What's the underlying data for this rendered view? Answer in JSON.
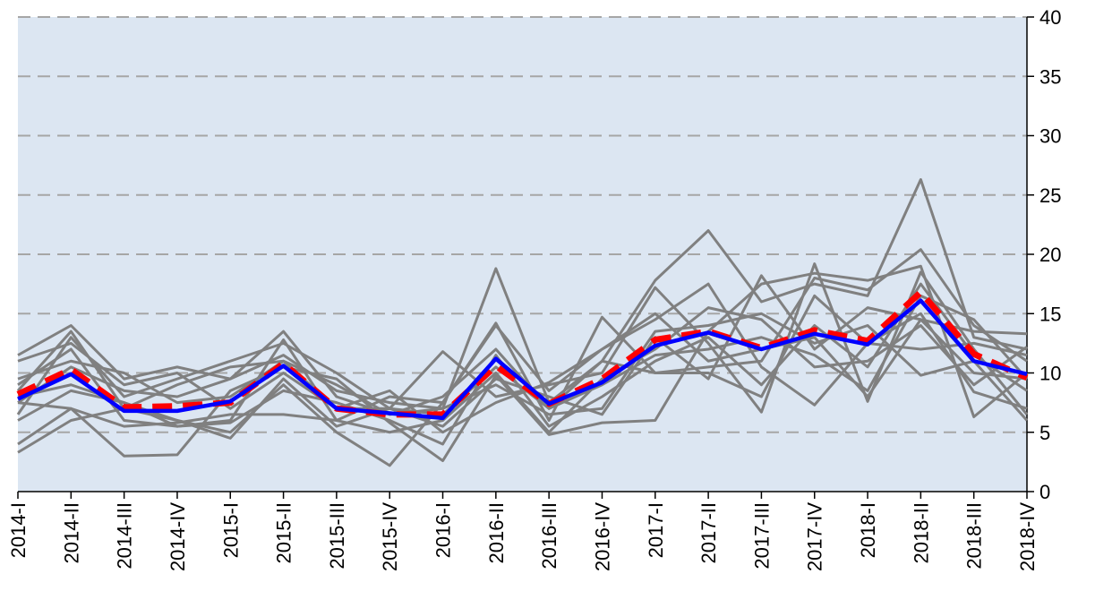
{
  "chart_data": {
    "type": "line",
    "categories": [
      "2014-I",
      "2014-II",
      "2014-III",
      "2014-IV",
      "2015-I",
      "2015-II",
      "2015-III",
      "2015-IV",
      "2016-I",
      "2016-II",
      "2016-III",
      "2016-IV",
      "2017-I",
      "2017-II",
      "2017-III",
      "2017-IV",
      "2018-I",
      "2018-II",
      "2018-III",
      "2018-IV"
    ],
    "ylim": [
      0,
      40
    ],
    "yticks": [
      0,
      5,
      10,
      15,
      20,
      25,
      30,
      35,
      40
    ],
    "grid": true,
    "y_axis_side": "right",
    "plot_background": "#dce6f2",
    "series": [
      {
        "color": "#808080",
        "values": [
          11.5,
          14.0,
          9.5,
          10.5,
          9.5,
          13.5,
          8.0,
          6.5,
          7.0,
          18.8,
          7.5,
          11.0,
          17.8,
          22.0,
          16.0,
          17.5,
          16.5,
          26.3,
          13.0,
          12.0
        ]
      },
      {
        "color": "#808080",
        "values": [
          3.3,
          6.0,
          7.0,
          6.0,
          5.0,
          9.0,
          5.0,
          2.2,
          7.5,
          14.2,
          6.0,
          14.7,
          10.0,
          10.5,
          11.0,
          18.0,
          17.0,
          20.4,
          14.0,
          11.0
        ]
      },
      {
        "color": "#808080",
        "values": [
          4.0,
          7.0,
          3.0,
          3.1,
          8.5,
          10.5,
          9.5,
          5.8,
          2.6,
          9.8,
          4.8,
          5.8,
          6.0,
          13.5,
          17.5,
          18.4,
          17.8,
          19.0,
          6.3,
          10.0
        ]
      },
      {
        "color": "#808080",
        "values": [
          6.5,
          13.0,
          8.0,
          9.5,
          11.0,
          12.5,
          10.0,
          7.0,
          11.8,
          8.0,
          9.0,
          10.0,
          17.2,
          12.5,
          6.7,
          19.2,
          7.6,
          18.5,
          12.0,
          6.5
        ]
      },
      {
        "color": "#808080",
        "values": [
          9.0,
          12.0,
          6.0,
          5.5,
          6.0,
          12.8,
          6.0,
          8.0,
          7.5,
          14.0,
          8.5,
          12.0,
          14.5,
          17.5,
          10.5,
          7.3,
          12.5,
          15.0,
          8.4,
          7.0
        ]
      },
      {
        "color": "#808080",
        "values": [
          8.0,
          9.0,
          7.5,
          6.0,
          4.5,
          9.5,
          5.5,
          7.0,
          5.5,
          9.5,
          8.0,
          6.5,
          13.0,
          9.5,
          18.2,
          12.0,
          15.5,
          14.5,
          13.5,
          13.3
        ]
      },
      {
        "color": "#808080",
        "values": [
          11.0,
          12.5,
          9.0,
          10.0,
          7.0,
          10.0,
          7.0,
          8.5,
          5.0,
          7.5,
          9.2,
          12.0,
          15.0,
          11.0,
          12.0,
          13.0,
          8.0,
          14.5,
          10.0,
          9.5
        ]
      },
      {
        "color": "#808080",
        "values": [
          6.0,
          8.5,
          7.5,
          5.5,
          5.8,
          8.5,
          7.5,
          6.0,
          4.0,
          11.5,
          5.5,
          8.0,
          11.0,
          13.0,
          9.0,
          14.0,
          10.5,
          17.5,
          11.5,
          8.5
        ]
      },
      {
        "color": "#808080",
        "values": [
          7.5,
          7.0,
          5.5,
          5.8,
          6.5,
          6.5,
          6.0,
          5.0,
          6.0,
          10.0,
          5.0,
          9.5,
          12.0,
          15.5,
          14.5,
          10.5,
          11.0,
          14.0,
          9.0,
          12.2
        ]
      },
      {
        "color": "#808080",
        "values": [
          9.5,
          11.0,
          10.0,
          7.5,
          8.0,
          11.0,
          9.0,
          6.5,
          8.0,
          12.0,
          7.0,
          11.0,
          10.0,
          10.0,
          8.0,
          16.5,
          12.5,
          12.0,
          12.5,
          11.5
        ]
      },
      {
        "color": "#808080",
        "values": [
          7.5,
          10.5,
          8.5,
          8.0,
          9.5,
          11.5,
          8.5,
          7.5,
          7.0,
          9.0,
          6.5,
          7.0,
          13.5,
          14.0,
          15.0,
          12.5,
          14.0,
          9.8,
          11.0,
          6.0
        ]
      },
      {
        "color": "#808080",
        "values": [
          8.5,
          13.5,
          7.0,
          9.0,
          10.5,
          11.0,
          7.0,
          7.0,
          6.5,
          10.5,
          7.0,
          9.0,
          11.5,
          12.0,
          13.0,
          11.5,
          8.5,
          16.5,
          14.5,
          9.5
        ]
      },
      {
        "color": "#ff0000",
        "dashed": true,
        "values": [
          8.2,
          10.3,
          7.1,
          7.2,
          7.5,
          10.8,
          7.0,
          6.5,
          6.5,
          10.6,
          7.4,
          9.5,
          12.8,
          13.5,
          12.1,
          13.6,
          12.7,
          16.8,
          11.6,
          9.6
        ]
      },
      {
        "color": "#0000ff",
        "values": [
          7.8,
          9.9,
          6.8,
          6.8,
          7.6,
          10.6,
          7.0,
          6.6,
          6.2,
          11.2,
          7.4,
          9.2,
          12.3,
          13.4,
          12.0,
          13.3,
          12.4,
          16.1,
          11.0,
          9.9
        ]
      }
    ]
  }
}
